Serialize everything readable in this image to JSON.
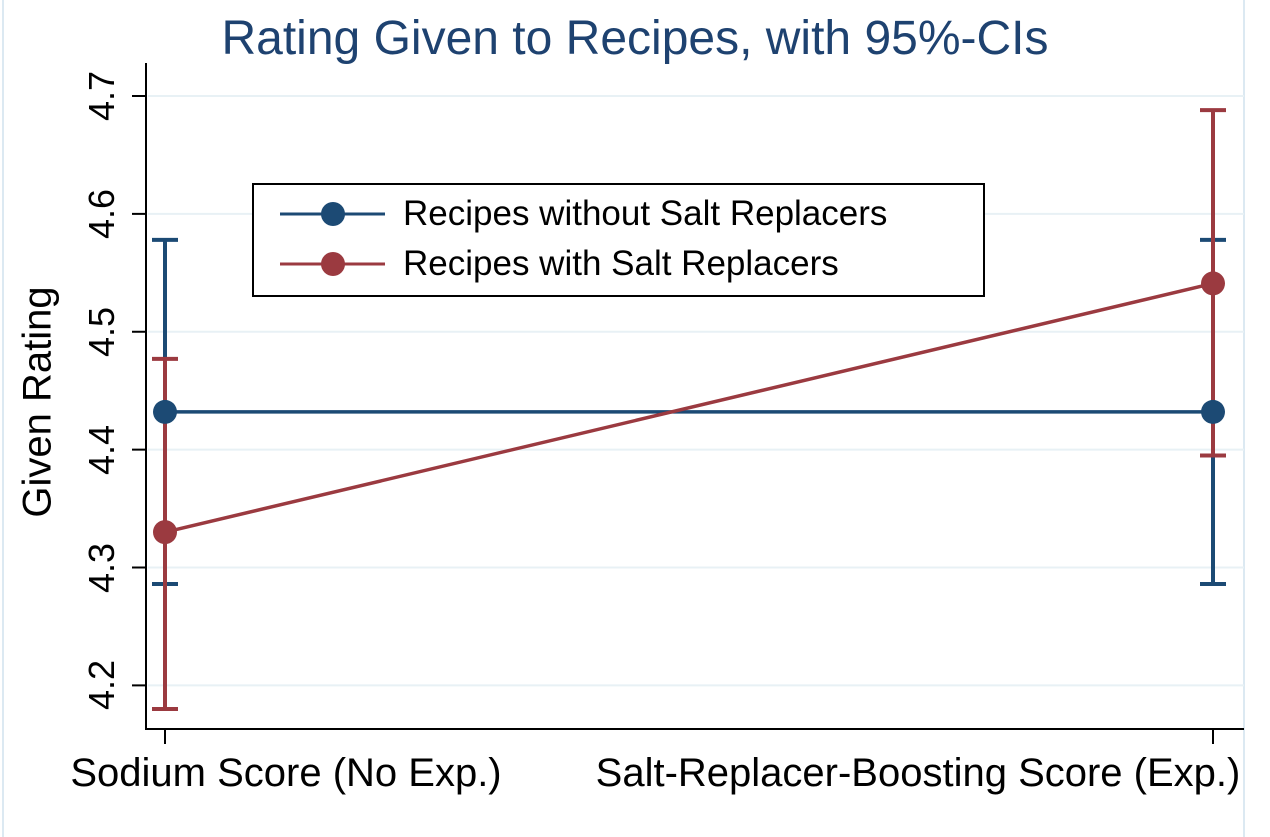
{
  "chart_data": {
    "type": "line",
    "title": "Rating Given to Recipes, with 95%-CIs",
    "ylabel": "Given Rating",
    "xlabel": "",
    "categories": [
      "Sodium Score (No Exp.)",
      "Salt-Replacer-Boosting Score (Exp.)"
    ],
    "yticks": [
      "4.2",
      "4.3",
      "4.4",
      "4.5",
      "4.6",
      "4.7"
    ],
    "ylim": [
      4.163,
      4.728
    ],
    "grid": true,
    "error_bars": "95% CI",
    "legend_position": "inside-upper-left",
    "series": [
      {
        "name": "Recipes without Salt Replacers",
        "color": "#1c4a74",
        "values": [
          4.432,
          4.432
        ],
        "ci_low": [
          4.286,
          4.286
        ],
        "ci_high": [
          4.578,
          4.578
        ]
      },
      {
        "name": "Recipes with Salt Replacers",
        "color": "#9b3a40",
        "values": [
          4.33,
          4.541
        ],
        "ci_low": [
          4.18,
          4.395
        ],
        "ci_high": [
          4.477,
          4.688
        ]
      }
    ],
    "colors": {
      "title": "#1e4270",
      "axis": "#000000",
      "grid": "#e8f1f5",
      "frame": "#dce9f2",
      "background": "#ffffff"
    }
  }
}
